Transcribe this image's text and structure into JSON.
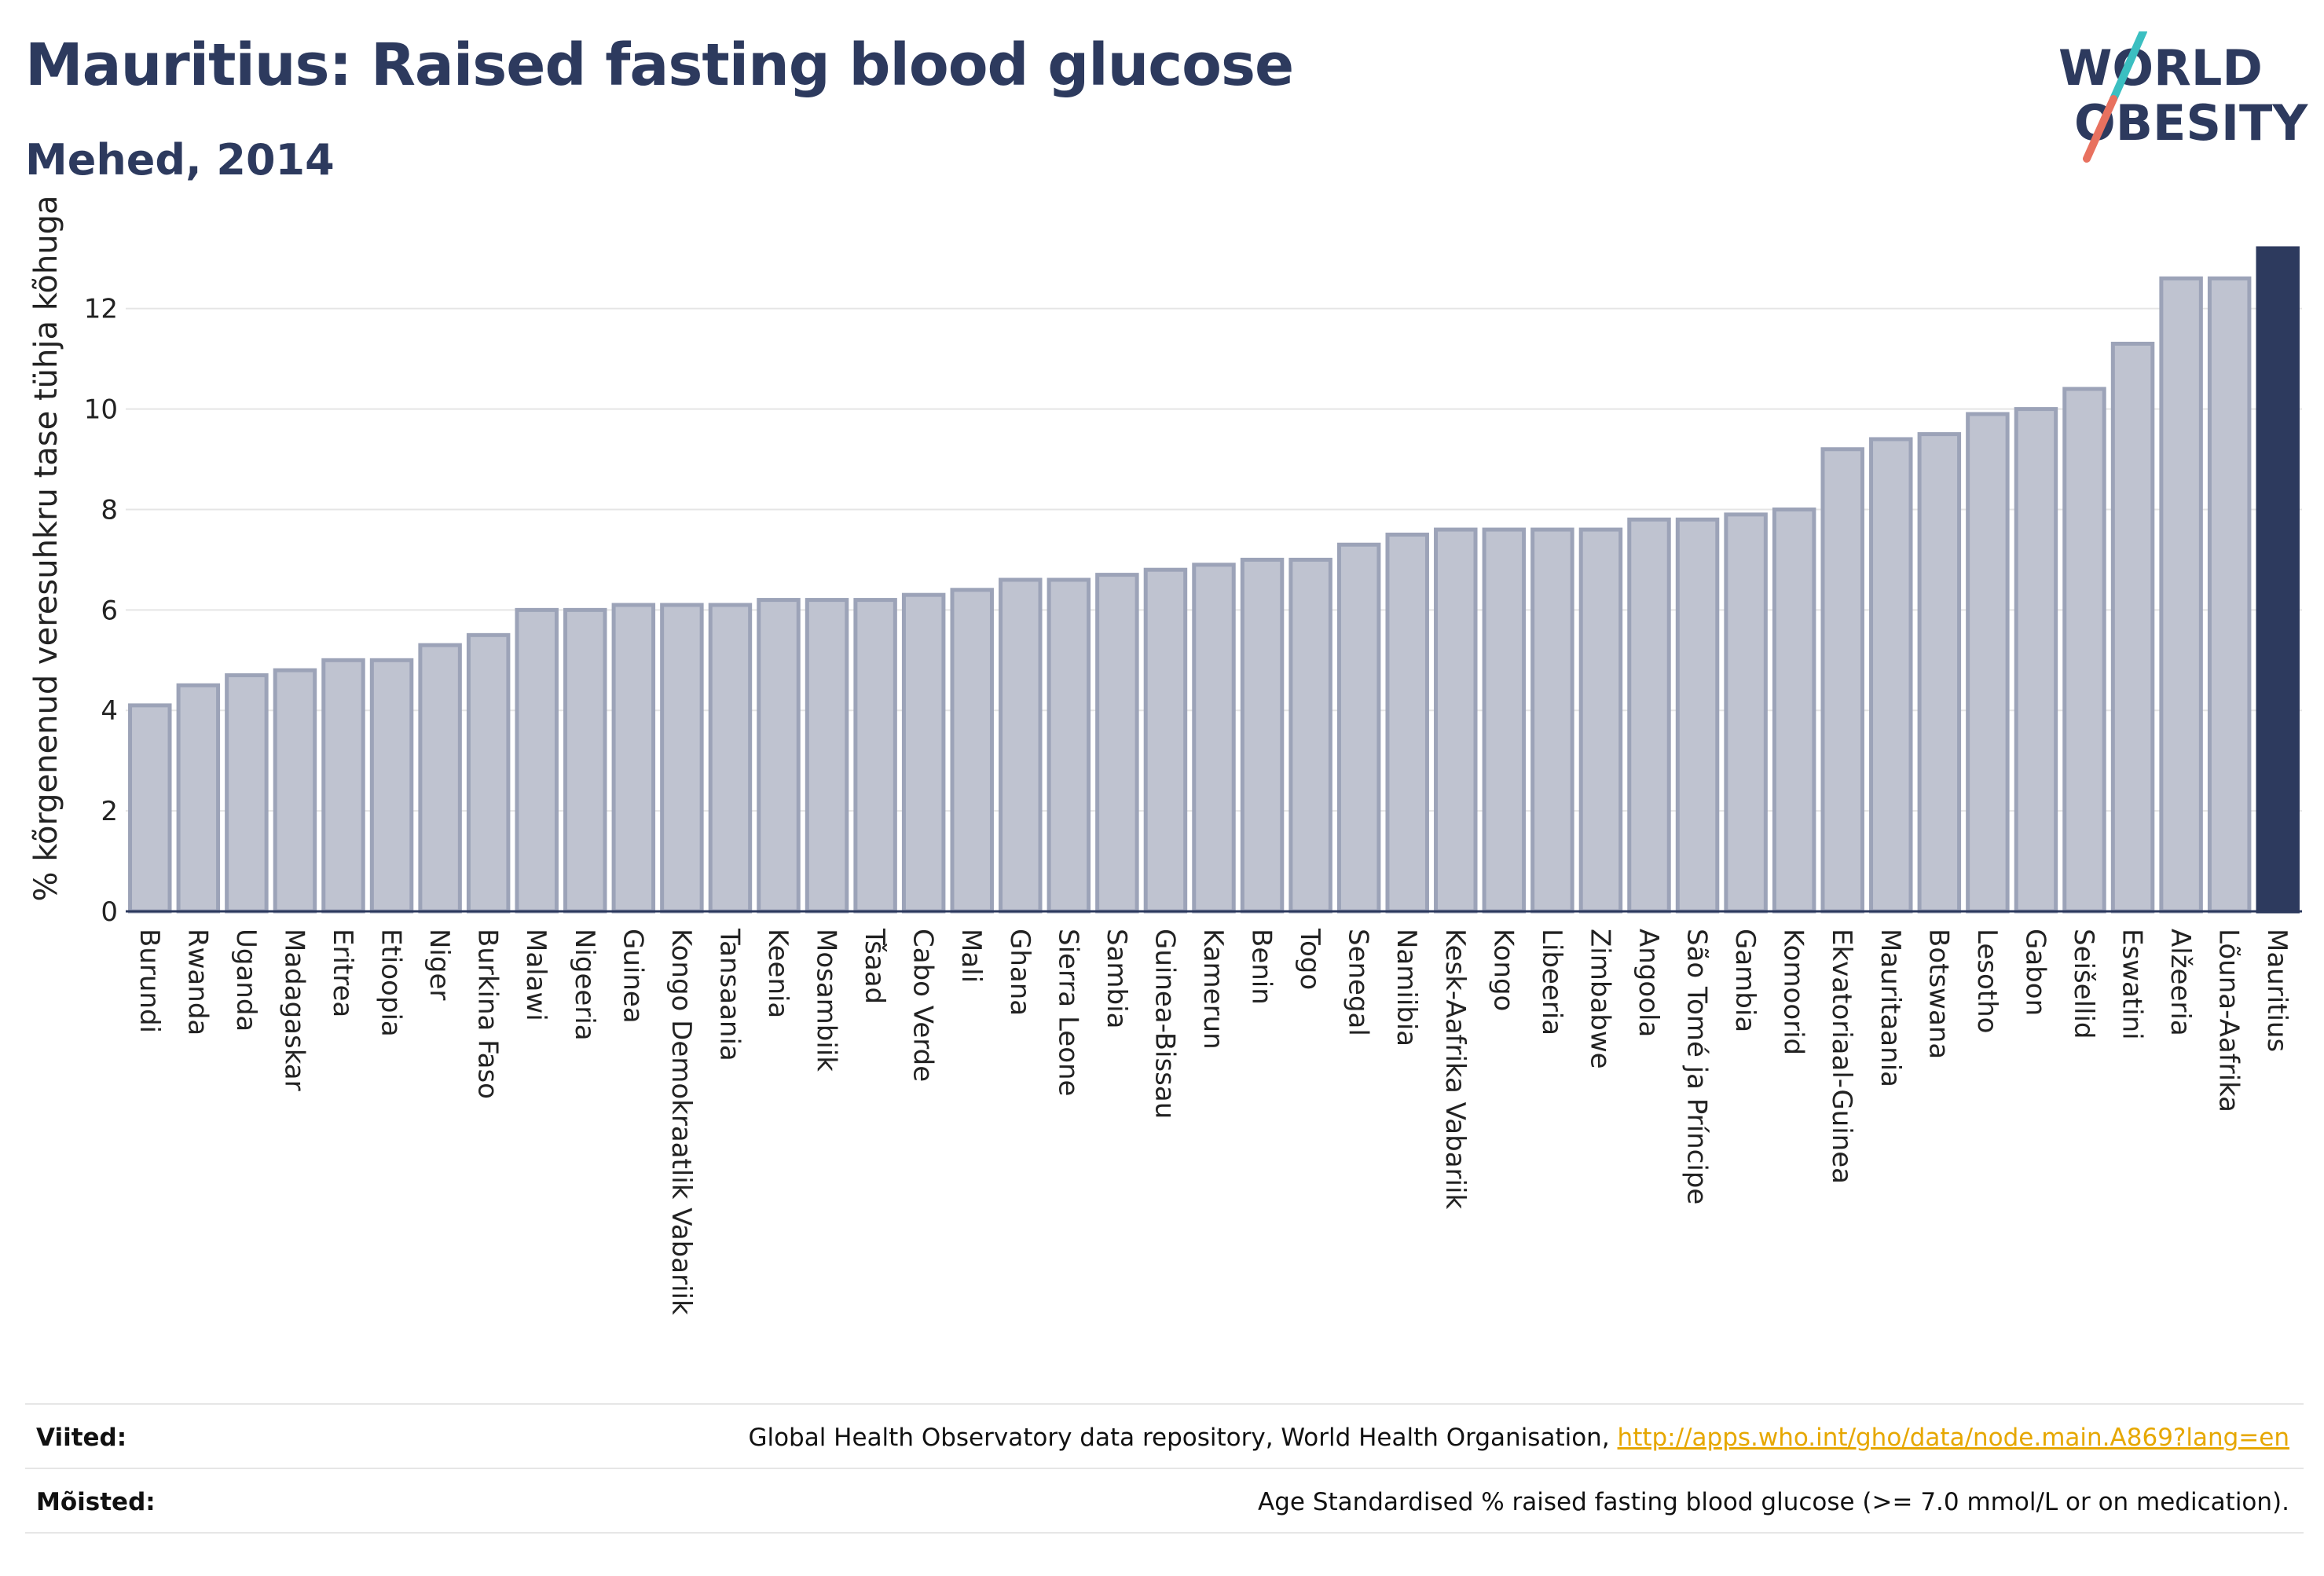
{
  "header": {
    "title": "Mauritius: Raised fasting blood glucose",
    "subtitle": "Mehed, 2014"
  },
  "logo": {
    "line1": "WORLD",
    "line2": "OBESITY",
    "text_color": "#2d3a5e",
    "slash_colors": [
      "#3bbfc1",
      "#e8715f"
    ]
  },
  "colors": {
    "bar_fill": "#bfc3d0",
    "bar_stroke": "#9ca3b8",
    "highlight": "#2d3a5e",
    "grid": "#e5e5e5",
    "axis": "#2d3a5e"
  },
  "chart_data": {
    "type": "bar",
    "title": "Mauritius: Raised fasting blood glucose",
    "subtitle": "Mehed, 2014",
    "ylabel": "% kõrgenenud veresuhkru tase tühja kõhuga",
    "xlabel": "",
    "ylim": [
      0,
      13.2
    ],
    "yticks": [
      0,
      2,
      4,
      6,
      8,
      10,
      12
    ],
    "grid": true,
    "highlight": "Mauritius",
    "categories": [
      "Burundi",
      "Rwanda",
      "Uganda",
      "Madagaskar",
      "Eritrea",
      "Etioopia",
      "Niger",
      "Burkina Faso",
      "Malawi",
      "Nigeeria",
      "Guinea",
      "Kongo Demokraatlik Vabariik",
      "Tansaania",
      "Keenia",
      "Mosambiik",
      "Tšaad",
      "Cabo Verde",
      "Mali",
      "Ghana",
      "Sierra Leone",
      "Sambia",
      "Guinea-Bissau",
      "Kamerun",
      "Benin",
      "Togo",
      "Senegal",
      "Namiibia",
      "Kesk-Aafrika Vabariik",
      "Kongo",
      "Libeeria",
      "Zimbabwe",
      "Angoola",
      "São Tomé ja Príncipe",
      "Gambia",
      "Komoorid",
      "Ekvatoriaal-Guinea",
      "Mauritaania",
      "Botswana",
      "Lesotho",
      "Gabon",
      "Seišellid",
      "Eswatini",
      "Alžeeria",
      "Lõuna-Aafrika",
      "Mauritius"
    ],
    "values": [
      4.1,
      4.5,
      4.7,
      4.8,
      5.0,
      5.0,
      5.3,
      5.5,
      6.0,
      6.0,
      6.1,
      6.1,
      6.1,
      6.2,
      6.2,
      6.2,
      6.3,
      6.4,
      6.6,
      6.6,
      6.7,
      6.8,
      6.9,
      7.0,
      7.0,
      7.3,
      7.5,
      7.6,
      7.6,
      7.6,
      7.6,
      7.8,
      7.8,
      7.9,
      8.0,
      9.2,
      9.4,
      9.5,
      9.9,
      10.0,
      10.4,
      11.3,
      12.6,
      12.6,
      13.2
    ]
  },
  "footer": {
    "sources_label": "Viited:",
    "sources_text": "Global Health Observatory data repository, World Health Organisation, ",
    "sources_link": "http://apps.who.int/gho/data/node.main.A869?lang=en",
    "definitions_label": "Mõisted:",
    "definitions_text": "Age Standardised % raised fasting blood glucose (>= 7.0 mmol/L or on medication)."
  }
}
